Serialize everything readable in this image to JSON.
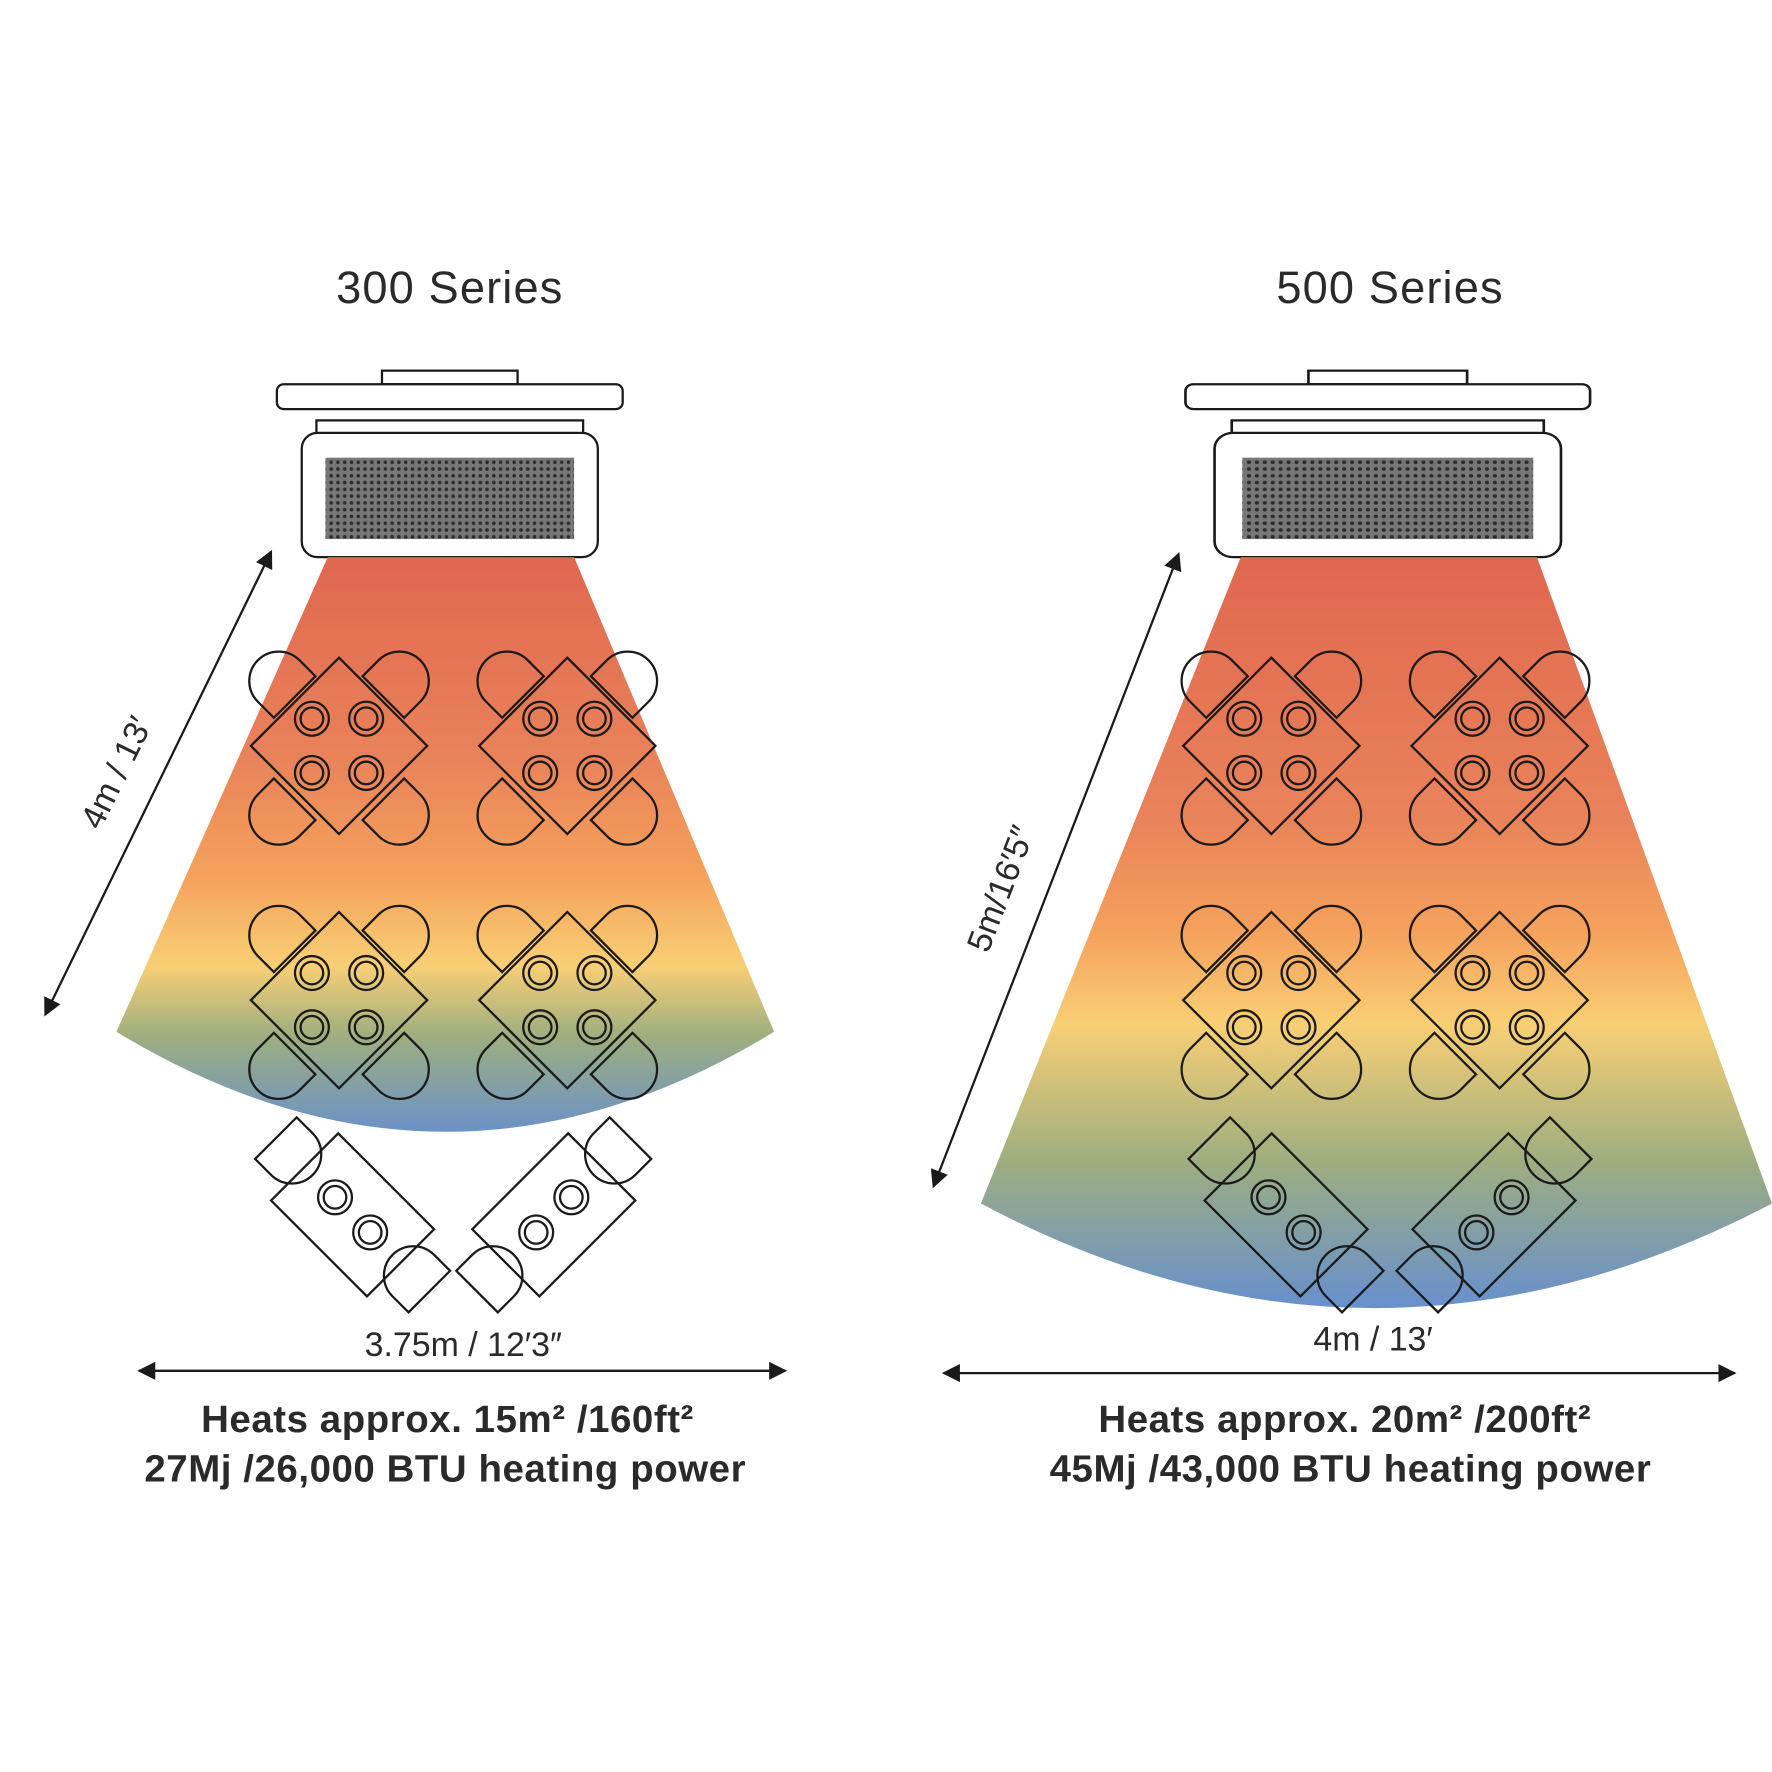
{
  "panels": [
    {
      "title": "300 Series",
      "depth_label": "4m / 13′",
      "width_label": "3.75m / 12′3″",
      "area_line": "Heats approx. 15m²  /160ft²",
      "power_line": "27Mj /26,000 BTU heating power"
    },
    {
      "title": "500 Series",
      "depth_label": "5m/16′5″",
      "width_label": "4m / 13′",
      "area_line": "Heats approx. 20m² /200ft²",
      "power_line": "45Mj /43,000 BTU heating power"
    }
  ]
}
